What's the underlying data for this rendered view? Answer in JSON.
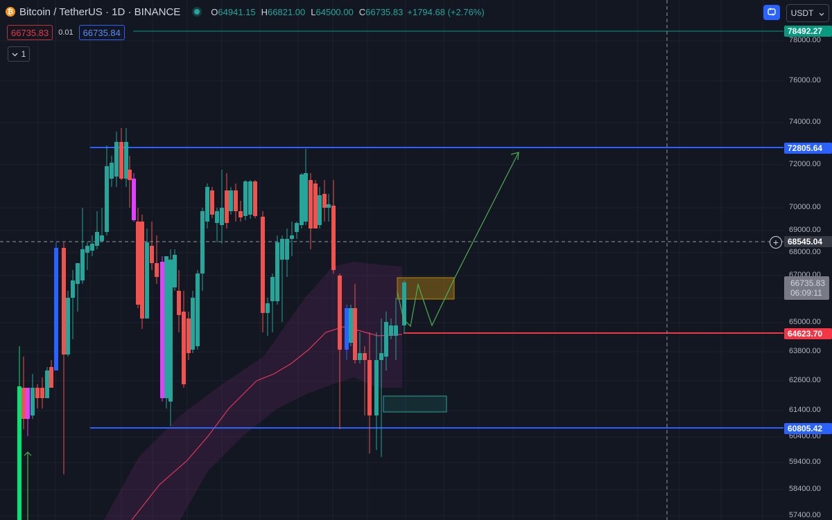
{
  "header": {
    "symbol": "Bitcoin / TetherUS · 1D · BINANCE",
    "coin_glyph": "₿",
    "ohlc": [
      {
        "key": "O",
        "value": "64941.15"
      },
      {
        "key": "H",
        "value": "66821.00"
      },
      {
        "key": "L",
        "value": "64500.00"
      },
      {
        "key": "C",
        "value": "66735.83"
      }
    ],
    "change": "+1794.68 (+2.76%)"
  },
  "trade": {
    "sell_price": "66735.83",
    "spread": "0.01",
    "buy_price": "66735.84"
  },
  "indicators": {
    "count": "1",
    "toggle_icon": "chevron-down-icon"
  },
  "toolbar": {
    "currency": "USDT",
    "sync_icon": "sync-icon"
  },
  "price_axis": {
    "ticks": [
      "78000.00",
      "76000.00",
      "74000.00",
      "72000.00",
      "70000.00",
      "69000.00",
      "68000.00",
      "67000.00",
      "66000.00",
      "65000.00",
      "63800.00",
      "62600.00",
      "61400.00",
      "60400.00",
      "59400.00",
      "58400.00",
      "57400.00"
    ],
    "labels": [
      {
        "price": "78492.27",
        "color": "#089981"
      },
      {
        "price": "72805.64",
        "color": "#2962ff"
      },
      {
        "price": "68545.04",
        "color": "#363a45"
      },
      {
        "price": "64623.70",
        "color": "#f23645"
      },
      {
        "price": "60805.42",
        "color": "#2962ff"
      }
    ],
    "current": {
      "price": "66735.83",
      "countdown": "06:09:11"
    }
  },
  "colors": {
    "up": "#26a69a",
    "down": "#ef5350",
    "resistance": "#2962ff",
    "support": "#f23645",
    "background": "#131722"
  }
}
